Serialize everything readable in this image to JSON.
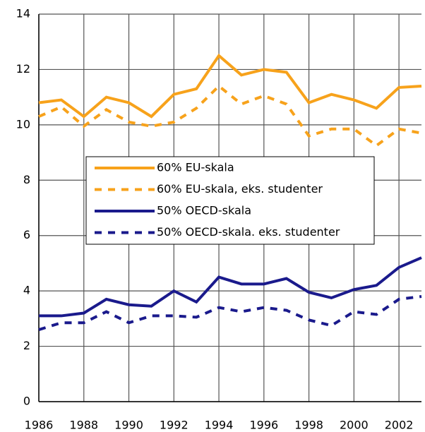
{
  "chart_data": {
    "type": "line",
    "x": [
      1986,
      1987,
      1988,
      1989,
      1990,
      1991,
      1992,
      1993,
      1994,
      1995,
      1996,
      1997,
      1998,
      1999,
      2000,
      2001,
      2002,
      2003
    ],
    "series": [
      {
        "name": "60% EU-skala",
        "color": "#f7a21b",
        "dash": false,
        "values": [
          10.8,
          10.9,
          10.3,
          11.0,
          10.8,
          10.3,
          11.1,
          11.3,
          12.5,
          11.8,
          12.0,
          11.9,
          10.8,
          11.1,
          10.9,
          10.6,
          11.35,
          11.4
        ]
      },
      {
        "name": "60% EU-skala, eks. studenter",
        "color": "#f7a21b",
        "dash": true,
        "values": [
          10.3,
          10.65,
          9.95,
          10.55,
          10.1,
          9.95,
          10.1,
          10.6,
          11.4,
          10.75,
          11.05,
          10.75,
          9.6,
          9.85,
          9.85,
          9.25,
          9.85,
          9.7
        ]
      },
      {
        "name": "50% OECD-skala",
        "color": "#1a1a8c",
        "dash": false,
        "values": [
          3.1,
          3.1,
          3.2,
          3.7,
          3.5,
          3.45,
          4.0,
          3.6,
          4.5,
          4.25,
          4.25,
          4.45,
          3.95,
          3.75,
          4.05,
          4.2,
          4.85,
          5.2
        ]
      },
      {
        "name": "50% OECD-skala. eks. studenter",
        "color": "#1a1a8c",
        "dash": true,
        "values": [
          2.6,
          2.85,
          2.85,
          3.25,
          2.85,
          3.1,
          3.1,
          3.05,
          3.4,
          3.25,
          3.4,
          3.3,
          2.95,
          2.75,
          3.25,
          3.15,
          3.7,
          3.8
        ]
      }
    ],
    "xlim": [
      1986,
      2003
    ],
    "xticks": [
      1986,
      1988,
      1990,
      1992,
      1994,
      1996,
      1998,
      2000,
      2002
    ],
    "ylim": [
      0,
      14
    ],
    "yticks": [
      0,
      2,
      4,
      6,
      8,
      10,
      12,
      14
    ],
    "grid": true
  }
}
